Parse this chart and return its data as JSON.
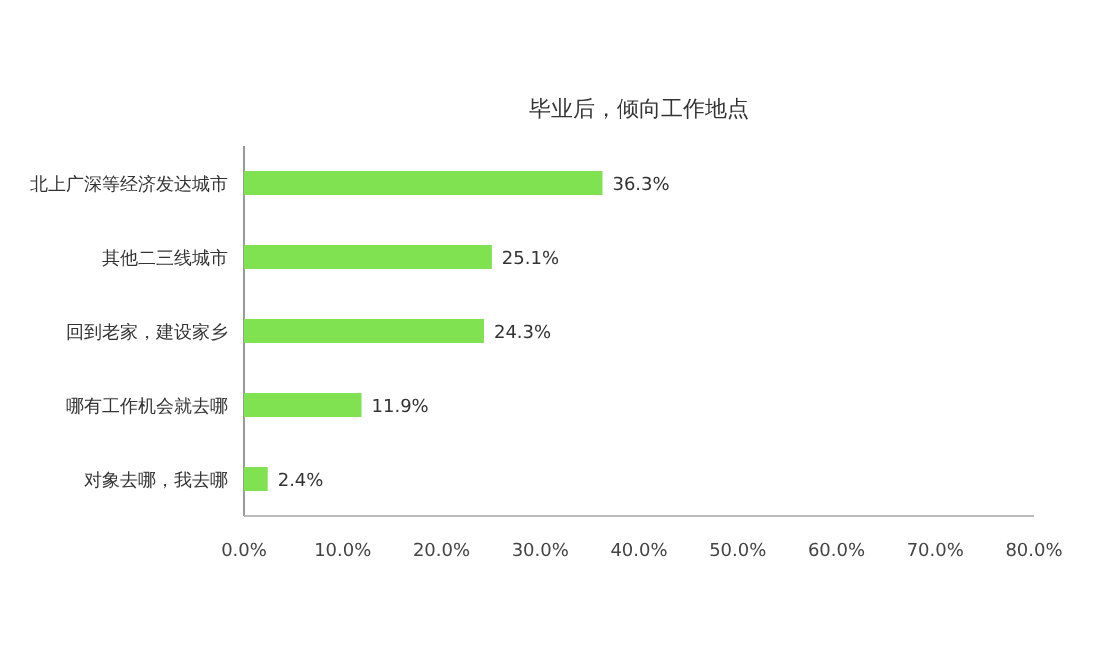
{
  "chart_data": {
    "type": "bar",
    "orientation": "horizontal",
    "title": "毕业后，倾向工作地点",
    "categories": [
      "北上广深等经济发达城市",
      "其他二三线城市",
      "回到老家，建设家乡",
      "哪有工作机会就去哪",
      "对象去哪，我去哪"
    ],
    "values": [
      36.3,
      25.1,
      24.3,
      11.9,
      2.4
    ],
    "value_labels": [
      "36.3%",
      "25.1%",
      "24.3%",
      "11.9%",
      "2.4%"
    ],
    "color": "#80e250",
    "xlim": [
      0,
      80
    ],
    "xticks": [
      {
        "value": 0,
        "label": "0.0%"
      },
      {
        "value": 10,
        "label": "10.0%"
      },
      {
        "value": 20,
        "label": "20.0%"
      },
      {
        "value": 30,
        "label": "30.0%"
      },
      {
        "value": 40,
        "label": "40.0%"
      },
      {
        "value": 50,
        "label": "50.0%"
      },
      {
        "value": 60,
        "label": "60.0%"
      },
      {
        "value": 70,
        "label": "70.0%"
      },
      {
        "value": 80,
        "label": "80.0%"
      }
    ],
    "grid": false
  }
}
